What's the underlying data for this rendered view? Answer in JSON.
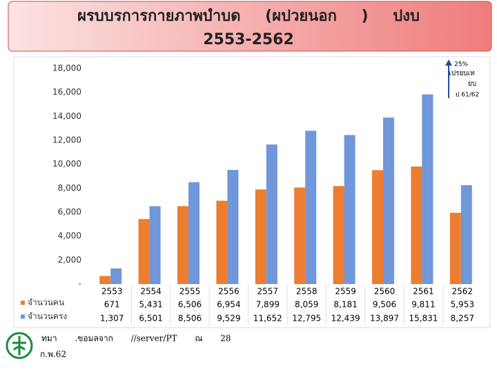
{
  "chart_data": {
    "type": "bar",
    "title": "ผรบบรการกายภาพบำบด (ผปวยนอก ) ปงบ",
    "subtitle": "2553-2562",
    "annotations": [
      "25%",
      "เปรยบเท",
      "ยบ",
      "ป 61/62"
    ],
    "source": [
      "ทมา .ขอมลจาก //server/PT ณ 28",
      "ก.พ.62"
    ],
    "categories": [
      "2553",
      "2554",
      "2555",
      "2556",
      "2557",
      "2558",
      "2559",
      "2560",
      "2561",
      "2562"
    ],
    "series": [
      {
        "name": "จำนวนคน",
        "color": "#ED7D31",
        "values": [
          671,
          5431,
          6506,
          6954,
          7899,
          8059,
          8181,
          9506,
          9811,
          5953
        ],
        "value_labels": [
          "671",
          "5,431",
          "6,506",
          "6,954",
          "7,899",
          "8,059",
          "8,181",
          "9,506",
          "9,811",
          "5,953"
        ]
      },
      {
        "name": "จำนวนครง",
        "color": "#6F97D9",
        "values": [
          1307,
          6501,
          8506,
          9529,
          11652,
          12795,
          12439,
          13897,
          15831,
          8257
        ],
        "value_labels": [
          "1,307",
          "6,501",
          "8,506",
          "9,529",
          "11,652",
          "12,795",
          "12,439",
          "13,897",
          "15,831",
          "8,257"
        ]
      }
    ],
    "ylim": [
      0,
      18000
    ],
    "yticks": [
      {
        "value": 0,
        "label": "-"
      },
      {
        "value": 2000,
        "label": "2,000"
      },
      {
        "value": 4000,
        "label": "4,000"
      },
      {
        "value": 6000,
        "label": "6,000"
      },
      {
        "value": 8000,
        "label": "8,000"
      },
      {
        "value": 10000,
        "label": "10,000"
      },
      {
        "value": 12000,
        "label": "12,000"
      },
      {
        "value": 14000,
        "label": "14,000"
      },
      {
        "value": 16000,
        "label": "16,000"
      },
      {
        "value": 18000,
        "label": "18,000"
      }
    ],
    "grid": false
  }
}
